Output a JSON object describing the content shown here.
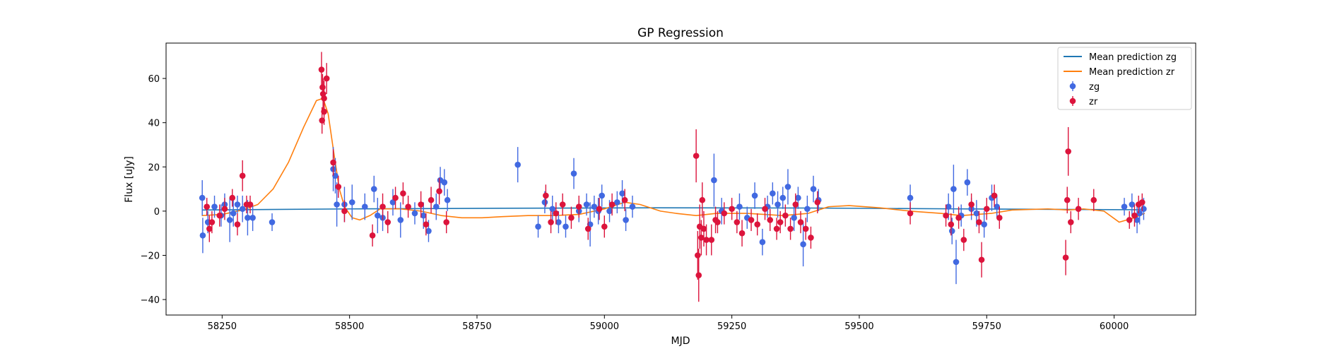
{
  "chart_data": {
    "type": "scatter",
    "title": "GP Regression",
    "xlabel": "MJD",
    "ylabel": "Flux [uJy]",
    "xlim": [
      58140,
      60160
    ],
    "ylim": [
      -47,
      76
    ],
    "xticks": [
      58250,
      58500,
      58750,
      59000,
      59250,
      59500,
      59750,
      60000
    ],
    "yticks": [
      -40,
      -20,
      0,
      20,
      40,
      60
    ],
    "grid": false,
    "legend_position": "top-right",
    "colors": {
      "zg": "#4169e1",
      "zr": "#dc143c",
      "mean_zg": "#1f77b4",
      "mean_zr": "#ff7f0e"
    },
    "legend": [
      {
        "label": "Mean prediction zg",
        "kind": "line",
        "color": "#1f77b4"
      },
      {
        "label": "Mean prediction zr",
        "kind": "line",
        "color": "#ff7f0e"
      },
      {
        "label": "zg",
        "kind": "errorbar",
        "color": "#4169e1"
      },
      {
        "label": "zr",
        "kind": "errorbar",
        "color": "#dc143c"
      }
    ],
    "series": [
      {
        "name": "Mean prediction zg",
        "kind": "line",
        "points": [
          [
            58210,
            0.5
          ],
          [
            58500,
            1.0
          ],
          [
            58800,
            1.3
          ],
          [
            59100,
            1.5
          ],
          [
            59400,
            1.4
          ],
          [
            59700,
            1.0
          ],
          [
            60060,
            0.6
          ]
        ]
      },
      {
        "name": "Mean prediction zr",
        "kind": "line",
        "points": [
          [
            58210,
            -2
          ],
          [
            58250,
            -1.5
          ],
          [
            58290,
            0.5
          ],
          [
            58320,
            3
          ],
          [
            58350,
            10
          ],
          [
            58380,
            22
          ],
          [
            58410,
            38
          ],
          [
            58435,
            50
          ],
          [
            58448,
            51
          ],
          [
            58458,
            44
          ],
          [
            58470,
            25
          ],
          [
            58480,
            10
          ],
          [
            58490,
            2
          ],
          [
            58505,
            -3
          ],
          [
            58520,
            -4
          ],
          [
            58540,
            -2
          ],
          [
            58560,
            1
          ],
          [
            58600,
            1
          ],
          [
            58640,
            0
          ],
          [
            58680,
            -2
          ],
          [
            58720,
            -3
          ],
          [
            58760,
            -3
          ],
          [
            58800,
            -2.5
          ],
          [
            58850,
            -2
          ],
          [
            58900,
            -2
          ],
          [
            58950,
            -1.5
          ],
          [
            59000,
            1
          ],
          [
            59040,
            4
          ],
          [
            59070,
            3
          ],
          [
            59110,
            0
          ],
          [
            59140,
            -1
          ],
          [
            59180,
            -2
          ],
          [
            59220,
            -1
          ],
          [
            59280,
            -1
          ],
          [
            59350,
            -2
          ],
          [
            59400,
            -1
          ],
          [
            59440,
            2
          ],
          [
            59480,
            2.5
          ],
          [
            59540,
            1.5
          ],
          [
            59600,
            0
          ],
          [
            59660,
            -1
          ],
          [
            59700,
            -2
          ],
          [
            59760,
            -1
          ],
          [
            59800,
            0.5
          ],
          [
            59870,
            1
          ],
          [
            59910,
            0.5
          ],
          [
            59940,
            1
          ],
          [
            59980,
            0
          ],
          [
            60010,
            -5
          ],
          [
            60040,
            -3
          ],
          [
            60060,
            -1
          ]
        ]
      },
      {
        "name": "zg",
        "kind": "errorbar",
        "points": [
          [
            58211,
            6,
            8
          ],
          [
            58212,
            -11,
            8
          ],
          [
            58222,
            -5,
            5
          ],
          [
            58235,
            2,
            5
          ],
          [
            58248,
            -2,
            5
          ],
          [
            58255,
            3,
            5
          ],
          [
            58265,
            -4,
            10
          ],
          [
            58272,
            -1,
            6
          ],
          [
            58280,
            3,
            4
          ],
          [
            58290,
            1,
            6
          ],
          [
            58300,
            -3,
            8
          ],
          [
            58310,
            -3,
            6
          ],
          [
            58348,
            -5,
            4
          ],
          [
            58468,
            19,
            10
          ],
          [
            58472,
            16,
            8
          ],
          [
            58475,
            3,
            10
          ],
          [
            58490,
            3,
            8
          ],
          [
            58505,
            4,
            8
          ],
          [
            58530,
            2,
            6
          ],
          [
            58548,
            10,
            6
          ],
          [
            58555,
            -2,
            8
          ],
          [
            58565,
            -3,
            6
          ],
          [
            58585,
            4,
            6
          ],
          [
            58600,
            -4,
            8
          ],
          [
            58628,
            -1,
            5
          ],
          [
            58645,
            -2,
            6
          ],
          [
            58655,
            -9,
            5
          ],
          [
            58670,
            2,
            6
          ],
          [
            58678,
            14,
            6
          ],
          [
            58686,
            13,
            6
          ],
          [
            58692,
            5,
            5
          ],
          [
            58830,
            21,
            8
          ],
          [
            58870,
            -7,
            5
          ],
          [
            58883,
            4,
            5
          ],
          [
            58898,
            1,
            6
          ],
          [
            58910,
            -5,
            5
          ],
          [
            58924,
            -7,
            5
          ],
          [
            58940,
            17,
            7
          ],
          [
            58950,
            0,
            5
          ],
          [
            58965,
            3,
            5
          ],
          [
            58972,
            -6,
            10
          ],
          [
            58980,
            2,
            5
          ],
          [
            58988,
            0,
            6
          ],
          [
            58995,
            7,
            5
          ],
          [
            59010,
            0,
            5
          ],
          [
            59025,
            4,
            5
          ],
          [
            59035,
            8,
            6
          ],
          [
            59042,
            -4,
            5
          ],
          [
            59055,
            2,
            5
          ],
          [
            59215,
            14,
            12
          ],
          [
            59230,
            0,
            6
          ],
          [
            59265,
            2,
            6
          ],
          [
            59280,
            -3,
            5
          ],
          [
            59295,
            7,
            6
          ],
          [
            59310,
            -14,
            6
          ],
          [
            59320,
            2,
            5
          ],
          [
            59330,
            8,
            5
          ],
          [
            59340,
            3,
            6
          ],
          [
            59350,
            6,
            5
          ],
          [
            59360,
            11,
            8
          ],
          [
            59372,
            -3,
            6
          ],
          [
            59380,
            6,
            5
          ],
          [
            59390,
            -15,
            10
          ],
          [
            59398,
            1,
            6
          ],
          [
            59410,
            10,
            6
          ],
          [
            59420,
            5,
            5
          ],
          [
            59600,
            6,
            6
          ],
          [
            59675,
            2,
            6
          ],
          [
            59682,
            -9,
            6
          ],
          [
            59685,
            10,
            11
          ],
          [
            59690,
            -23,
            10
          ],
          [
            59700,
            -2,
            5
          ],
          [
            59712,
            13,
            6
          ],
          [
            59720,
            1,
            5
          ],
          [
            59730,
            -1,
            6
          ],
          [
            59745,
            -6,
            6
          ],
          [
            59760,
            6,
            6
          ],
          [
            59770,
            2,
            5
          ],
          [
            60020,
            2,
            4
          ],
          [
            60035,
            3,
            5
          ],
          [
            60045,
            -4,
            6
          ],
          [
            60050,
            -1,
            5
          ],
          [
            60058,
            1,
            5
          ]
        ]
      },
      {
        "name": "zr",
        "kind": "errorbar",
        "points": [
          [
            58220,
            2,
            4
          ],
          [
            58225,
            -8,
            6
          ],
          [
            58230,
            -5,
            5
          ],
          [
            58245,
            -2,
            5
          ],
          [
            58255,
            1,
            5
          ],
          [
            58270,
            6,
            4
          ],
          [
            58280,
            -6,
            5
          ],
          [
            58290,
            16,
            7
          ],
          [
            58298,
            3,
            4
          ],
          [
            58305,
            3,
            4
          ],
          [
            58445,
            64,
            8
          ],
          [
            58447,
            56,
            6
          ],
          [
            58448,
            53,
            7
          ],
          [
            58450,
            51,
            8
          ],
          [
            58450,
            45,
            6
          ],
          [
            58446,
            41,
            6
          ],
          [
            58455,
            60,
            7
          ],
          [
            58468,
            22,
            6
          ],
          [
            58478,
            11,
            5
          ],
          [
            58490,
            0,
            5
          ],
          [
            58545,
            -11,
            5
          ],
          [
            58565,
            2,
            6
          ],
          [
            58575,
            -5,
            5
          ],
          [
            58590,
            6,
            5
          ],
          [
            58605,
            8,
            5
          ],
          [
            58615,
            2,
            5
          ],
          [
            58640,
            3,
            6
          ],
          [
            58650,
            -6,
            5
          ],
          [
            58660,
            5,
            6
          ],
          [
            58676,
            9,
            6
          ],
          [
            58690,
            -5,
            5
          ],
          [
            58885,
            7,
            5
          ],
          [
            58895,
            -5,
            5
          ],
          [
            58905,
            -1,
            5
          ],
          [
            58918,
            3,
            5
          ],
          [
            58935,
            -3,
            5
          ],
          [
            58950,
            2,
            5
          ],
          [
            58968,
            -8,
            5
          ],
          [
            58990,
            1,
            5
          ],
          [
            59000,
            -7,
            5
          ],
          [
            59015,
            3,
            5
          ],
          [
            59040,
            5,
            5
          ],
          [
            59180,
            25,
            12
          ],
          [
            59183,
            -20,
            11
          ],
          [
            59185,
            -29,
            12
          ],
          [
            59187,
            -7,
            10
          ],
          [
            59190,
            -12,
            8
          ],
          [
            59192,
            5,
            8
          ],
          [
            59195,
            -8,
            8
          ],
          [
            59200,
            -13,
            7
          ],
          [
            59210,
            -13,
            7
          ],
          [
            59218,
            -4,
            6
          ],
          [
            59222,
            -5,
            5
          ],
          [
            59235,
            -1,
            5
          ],
          [
            59250,
            1,
            5
          ],
          [
            59260,
            -5,
            5
          ],
          [
            59270,
            -10,
            6
          ],
          [
            59288,
            -4,
            5
          ],
          [
            59300,
            -6,
            5
          ],
          [
            59315,
            1,
            5
          ],
          [
            59325,
            -4,
            5
          ],
          [
            59338,
            -8,
            5
          ],
          [
            59345,
            -5,
            5
          ],
          [
            59355,
            -2,
            5
          ],
          [
            59365,
            -8,
            5
          ],
          [
            59375,
            3,
            5
          ],
          [
            59385,
            -5,
            5
          ],
          [
            59395,
            -8,
            5
          ],
          [
            59405,
            -12,
            5
          ],
          [
            59418,
            4,
            5
          ],
          [
            59600,
            -1,
            5
          ],
          [
            59670,
            -2,
            5
          ],
          [
            59680,
            -6,
            5
          ],
          [
            59695,
            -3,
            5
          ],
          [
            59705,
            -13,
            5
          ],
          [
            59720,
            3,
            5
          ],
          [
            59735,
            -5,
            5
          ],
          [
            59740,
            -22,
            8
          ],
          [
            59750,
            1,
            5
          ],
          [
            59765,
            7,
            5
          ],
          [
            59775,
            -3,
            5
          ],
          [
            59905,
            -21,
            8
          ],
          [
            59908,
            5,
            6
          ],
          [
            59910,
            27,
            11
          ],
          [
            59915,
            -5,
            5
          ],
          [
            59930,
            1,
            5
          ],
          [
            59960,
            5,
            5
          ],
          [
            60030,
            -4,
            4
          ],
          [
            60040,
            -2,
            5
          ],
          [
            60048,
            3,
            4
          ],
          [
            60055,
            4,
            4
          ]
        ]
      }
    ]
  }
}
